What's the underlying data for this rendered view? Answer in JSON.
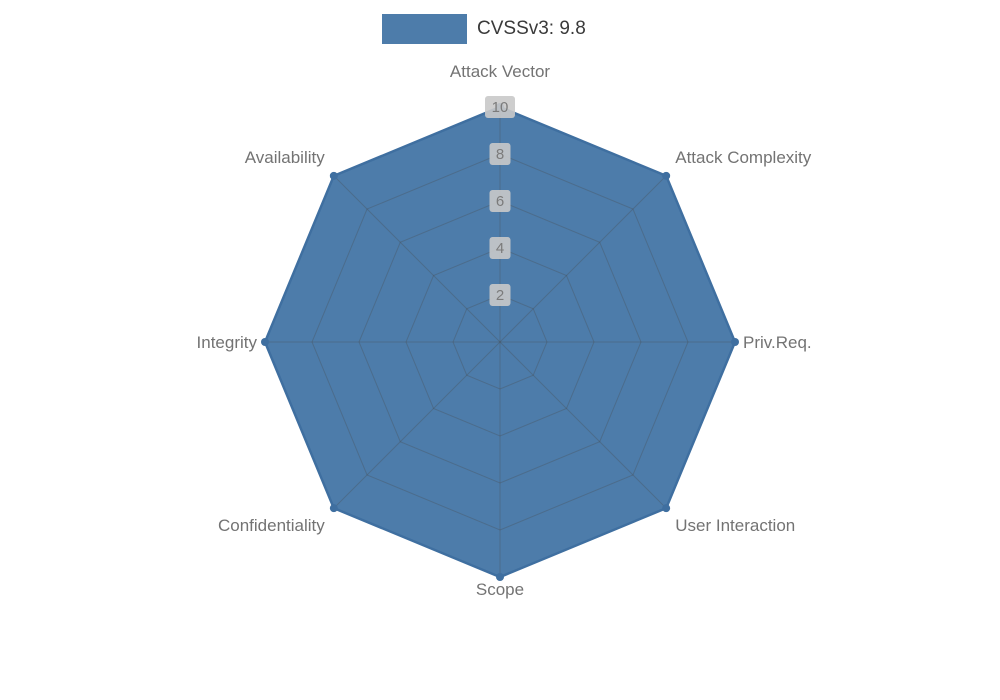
{
  "legend": {
    "label": "CVSSv3: 9.8",
    "swatch_color": "#4d7caa"
  },
  "chart_data": {
    "type": "radar",
    "categories": [
      "Attack Vector",
      "Attack Complexity",
      "Priv.Req.",
      "User Interaction",
      "Scope",
      "Confidentiality",
      "Integrity",
      "Availability"
    ],
    "series": [
      {
        "name": "CVSSv3: 9.8",
        "values": [
          10,
          10,
          10,
          10,
          10,
          10,
          10,
          10
        ]
      }
    ],
    "radial_ticks": [
      2,
      4,
      6,
      8,
      10
    ],
    "rmax": 10,
    "grid": true,
    "legend_position": "top-center",
    "colors": {
      "fill": "#4d7caa",
      "outline": "#3f6fa0",
      "marker": "#3f6fa0",
      "grid": "#4a4a4a",
      "category_label": "#737373",
      "tick_text": "#7b7b7b",
      "tick_bg": "#c9c9c9",
      "legend_text": "#3a3a3a"
    }
  }
}
